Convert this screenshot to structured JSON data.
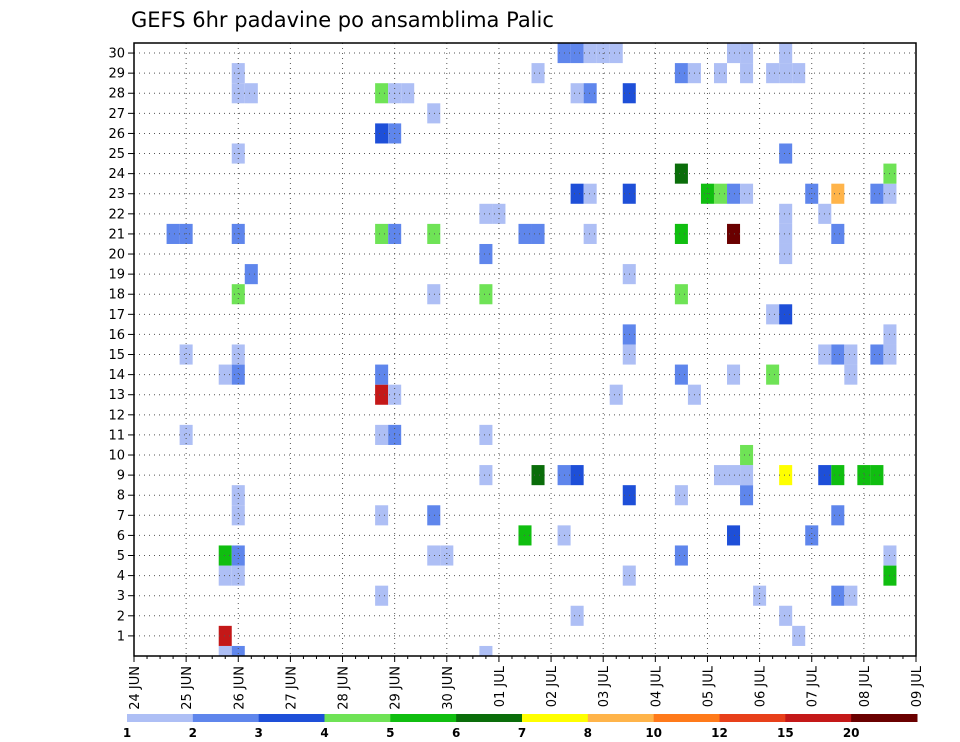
{
  "chart_data": {
    "type": "heatmap",
    "title": "GEFS 6hr padavine po ansamblima Palic",
    "x_ticks": [
      "24 JUN",
      "25 JUN",
      "26 JUN",
      "27 JUN",
      "28 JUN",
      "29 JUN",
      "30 JUN",
      "01 JUL",
      "02 JUL",
      "03 JUL",
      "04 JUL",
      "05 JUL",
      "06 JUL",
      "07 JUL",
      "08 JUL",
      "09 JUL"
    ],
    "y_ticks": [
      1,
      2,
      3,
      4,
      5,
      6,
      7,
      8,
      9,
      10,
      11,
      12,
      13,
      14,
      15,
      16,
      17,
      18,
      19,
      20,
      21,
      22,
      23,
      24,
      25,
      26,
      27,
      28,
      29,
      30
    ],
    "grid": true,
    "xlabel": "",
    "ylabel": "",
    "colorbar": {
      "labels": [
        "1",
        "2",
        "3",
        "4",
        "5",
        "6",
        "7",
        "8",
        "10",
        "12",
        "15",
        "20"
      ],
      "colors": [
        "#aebff5",
        "#5f86ec",
        "#1e4fd8",
        "#6fe356",
        "#10be10",
        "#0a6d0a",
        "#ffff00",
        "#ffb44a",
        "#ff7a1a",
        "#e8401a",
        "#c41818",
        "#6a0000"
      ]
    },
    "cells": [
      {
        "x": -1,
        "y": 0,
        "v": 1.5
      },
      {
        "x": -1,
        "y": 1,
        "v": 15
      },
      {
        "x": -1,
        "y": 4,
        "v": 1.5
      },
      {
        "x": -1,
        "y": 5,
        "v": 5.5
      },
      {
        "x": -1,
        "y": 14,
        "v": 1.5
      },
      {
        "x": 0,
        "y": 0,
        "v": 2.5
      },
      {
        "x": 0,
        "y": 4,
        "v": 1.5
      },
      {
        "x": 0,
        "y": 5,
        "v": 2.5
      },
      {
        "x": 0,
        "y": 7,
        "v": 1.5
      },
      {
        "x": 0,
        "y": 8,
        "v": 1.5
      },
      {
        "x": 0,
        "y": 14,
        "v": 2.5
      },
      {
        "x": 0,
        "y": 15,
        "v": 1.5
      },
      {
        "x": 0,
        "y": 18,
        "v": 4.5
      },
      {
        "x": 0,
        "y": 21,
        "v": 2.5
      },
      {
        "x": 0,
        "y": 25,
        "v": 1.5
      },
      {
        "x": 0,
        "y": 28,
        "v": 1.5
      },
      {
        "x": 0,
        "y": 29,
        "v": 1.5
      },
      {
        "x": 1,
        "y": 19,
        "v": 2.5
      },
      {
        "x": 1,
        "y": 28,
        "v": 1.5
      },
      {
        "x": -5,
        "y": 21,
        "v": 2.5
      },
      {
        "x": -4,
        "y": 21,
        "v": 2.5
      },
      {
        "x": -4,
        "y": 11,
        "v": 1.5
      },
      {
        "x": -4,
        "y": 15,
        "v": 1.5
      },
      {
        "x": 11,
        "y": 3,
        "v": 1.5
      },
      {
        "x": 11,
        "y": 7,
        "v": 1.5
      },
      {
        "x": 11,
        "y": 11,
        "v": 1.5
      },
      {
        "x": 11,
        "y": 13,
        "v": 15
      },
      {
        "x": 11,
        "y": 14,
        "v": 2.5
      },
      {
        "x": 11,
        "y": 21,
        "v": 4.5
      },
      {
        "x": 11,
        "y": 26,
        "v": 3.5
      },
      {
        "x": 11,
        "y": 28,
        "v": 4.5
      },
      {
        "x": 12,
        "y": 11,
        "v": 2.5
      },
      {
        "x": 12,
        "y": 13,
        "v": 1.5
      },
      {
        "x": 12,
        "y": 21,
        "v": 2.5
      },
      {
        "x": 12,
        "y": 26,
        "v": 2.5
      },
      {
        "x": 12,
        "y": 28,
        "v": 1.5
      },
      {
        "x": 13,
        "y": 28,
        "v": 1.5
      },
      {
        "x": 15,
        "y": 5,
        "v": 1.5
      },
      {
        "x": 15,
        "y": 7,
        "v": 2.5
      },
      {
        "x": 15,
        "y": 18,
        "v": 1.5
      },
      {
        "x": 15,
        "y": 21,
        "v": 4.5
      },
      {
        "x": 15,
        "y": 27,
        "v": 1.5
      },
      {
        "x": 16,
        "y": 5,
        "v": 1.5
      },
      {
        "x": 19,
        "y": 0,
        "v": 1.5
      },
      {
        "x": 19,
        "y": 9,
        "v": 1.5
      },
      {
        "x": 19,
        "y": 11,
        "v": 1.5
      },
      {
        "x": 19,
        "y": 18,
        "v": 4.5
      },
      {
        "x": 19,
        "y": 20,
        "v": 2.5
      },
      {
        "x": 19,
        "y": 22,
        "v": 1.5
      },
      {
        "x": 20,
        "y": 22,
        "v": 1.5
      },
      {
        "x": 22,
        "y": 6,
        "v": 5.5
      },
      {
        "x": 22,
        "y": 21,
        "v": 2.5
      },
      {
        "x": 23,
        "y": 9,
        "v": 6.5
      },
      {
        "x": 23,
        "y": 21,
        "v": 2.5
      },
      {
        "x": 23,
        "y": 29,
        "v": 1.5
      },
      {
        "x": 25,
        "y": 6,
        "v": 1.5
      },
      {
        "x": 25,
        "y": 9,
        "v": 2.5
      },
      {
        "x": 25,
        "y": 30,
        "v": 2.5
      },
      {
        "x": 26,
        "y": 2,
        "v": 1.5
      },
      {
        "x": 26,
        "y": 9,
        "v": 3.5
      },
      {
        "x": 26,
        "y": 23,
        "v": 3.5
      },
      {
        "x": 26,
        "y": 28,
        "v": 1.5
      },
      {
        "x": 26,
        "y": 30,
        "v": 2.5
      },
      {
        "x": 27,
        "y": 21,
        "v": 1.5
      },
      {
        "x": 27,
        "y": 23,
        "v": 1.5
      },
      {
        "x": 27,
        "y": 28,
        "v": 2.5
      },
      {
        "x": 27,
        "y": 30,
        "v": 1.5
      },
      {
        "x": 28,
        "y": 30,
        "v": 1.5
      },
      {
        "x": 29,
        "y": 13,
        "v": 1.5
      },
      {
        "x": 29,
        "y": 30,
        "v": 1.5
      },
      {
        "x": 30,
        "y": 4,
        "v": 1.5
      },
      {
        "x": 30,
        "y": 8,
        "v": 3.5
      },
      {
        "x": 30,
        "y": 15,
        "v": 1.5
      },
      {
        "x": 30,
        "y": 16,
        "v": 2.5
      },
      {
        "x": 30,
        "y": 19,
        "v": 1.5
      },
      {
        "x": 30,
        "y": 23,
        "v": 3.5
      },
      {
        "x": 30,
        "y": 28,
        "v": 3.5
      },
      {
        "x": 34,
        "y": 5,
        "v": 2.5
      },
      {
        "x": 34,
        "y": 8,
        "v": 1.5
      },
      {
        "x": 34,
        "y": 14,
        "v": 2.5
      },
      {
        "x": 34,
        "y": 18,
        "v": 4.5
      },
      {
        "x": 34,
        "y": 21,
        "v": 5.5
      },
      {
        "x": 34,
        "y": 24,
        "v": 6.5
      },
      {
        "x": 34,
        "y": 29,
        "v": 2.5
      },
      {
        "x": 35,
        "y": 13,
        "v": 1.5
      },
      {
        "x": 35,
        "y": 29,
        "v": 1.5
      },
      {
        "x": 36,
        "y": 23,
        "v": 5.5
      },
      {
        "x": 37,
        "y": 23,
        "v": 4.5
      },
      {
        "x": 37,
        "y": 9,
        "v": 1.5
      },
      {
        "x": 37,
        "y": 29,
        "v": 1.5
      },
      {
        "x": 38,
        "y": 6,
        "v": 3.5
      },
      {
        "x": 38,
        "y": 9,
        "v": 1.5
      },
      {
        "x": 38,
        "y": 14,
        "v": 1.5
      },
      {
        "x": 38,
        "y": 21,
        "v": 20
      },
      {
        "x": 38,
        "y": 23,
        "v": 2.5
      },
      {
        "x": 38,
        "y": 30,
        "v": 1.5
      },
      {
        "x": 39,
        "y": 8,
        "v": 2.5
      },
      {
        "x": 39,
        "y": 9,
        "v": 1.5
      },
      {
        "x": 39,
        "y": 10,
        "v": 4.5
      },
      {
        "x": 39,
        "y": 23,
        "v": 1.5
      },
      {
        "x": 39,
        "y": 29,
        "v": 1.5
      },
      {
        "x": 39,
        "y": 30,
        "v": 1.5
      },
      {
        "x": 40,
        "y": 3,
        "v": 1.5
      },
      {
        "x": 41,
        "y": 17,
        "v": 1.5
      },
      {
        "x": 41,
        "y": 14,
        "v": 4.5
      },
      {
        "x": 41,
        "y": 29,
        "v": 1.5
      },
      {
        "x": 42,
        "y": 2,
        "v": 1.5
      },
      {
        "x": 42,
        "y": 9,
        "v": 7.5
      },
      {
        "x": 42,
        "y": 17,
        "v": 3.5
      },
      {
        "x": 42,
        "y": 20,
        "v": 1.5
      },
      {
        "x": 42,
        "y": 21,
        "v": 1.5
      },
      {
        "x": 42,
        "y": 22,
        "v": 1.5
      },
      {
        "x": 42,
        "y": 25,
        "v": 2.5
      },
      {
        "x": 42,
        "y": 29,
        "v": 1.5
      },
      {
        "x": 42,
        "y": 30,
        "v": 1.5
      },
      {
        "x": 43,
        "y": 29,
        "v": 1.5
      },
      {
        "x": 43,
        "y": 1,
        "v": 1.5
      },
      {
        "x": 44,
        "y": 6,
        "v": 2.5
      },
      {
        "x": 44,
        "y": 23,
        "v": 2.5
      },
      {
        "x": 45,
        "y": 15,
        "v": 1.5
      },
      {
        "x": 45,
        "y": 22,
        "v": 1.5
      },
      {
        "x": 45,
        "y": 9,
        "v": 3.5
      },
      {
        "x": 46,
        "y": 3,
        "v": 2.5
      },
      {
        "x": 46,
        "y": 7,
        "v": 2.5
      },
      {
        "x": 46,
        "y": 9,
        "v": 5.5
      },
      {
        "x": 46,
        "y": 15,
        "v": 2.5
      },
      {
        "x": 46,
        "y": 21,
        "v": 2.5
      },
      {
        "x": 46,
        "y": 23,
        "v": 8.5
      },
      {
        "x": 47,
        "y": 3,
        "v": 1.5
      },
      {
        "x": 47,
        "y": 14,
        "v": 1.5
      },
      {
        "x": 47,
        "y": 15,
        "v": 1.5
      },
      {
        "x": 48,
        "y": 9,
        "v": 5.5
      },
      {
        "x": 49,
        "y": 9,
        "v": 5.5
      },
      {
        "x": 49,
        "y": 15,
        "v": 2.5
      },
      {
        "x": 49,
        "y": 23,
        "v": 2.5
      },
      {
        "x": 50,
        "y": 4,
        "v": 5.5
      },
      {
        "x": 50,
        "y": 5,
        "v": 1.5
      },
      {
        "x": 50,
        "y": 15,
        "v": 1.5
      },
      {
        "x": 50,
        "y": 16,
        "v": 1.5
      },
      {
        "x": 50,
        "y": 23,
        "v": 1.5
      },
      {
        "x": 50,
        "y": 24,
        "v": 4.5
      }
    ]
  }
}
